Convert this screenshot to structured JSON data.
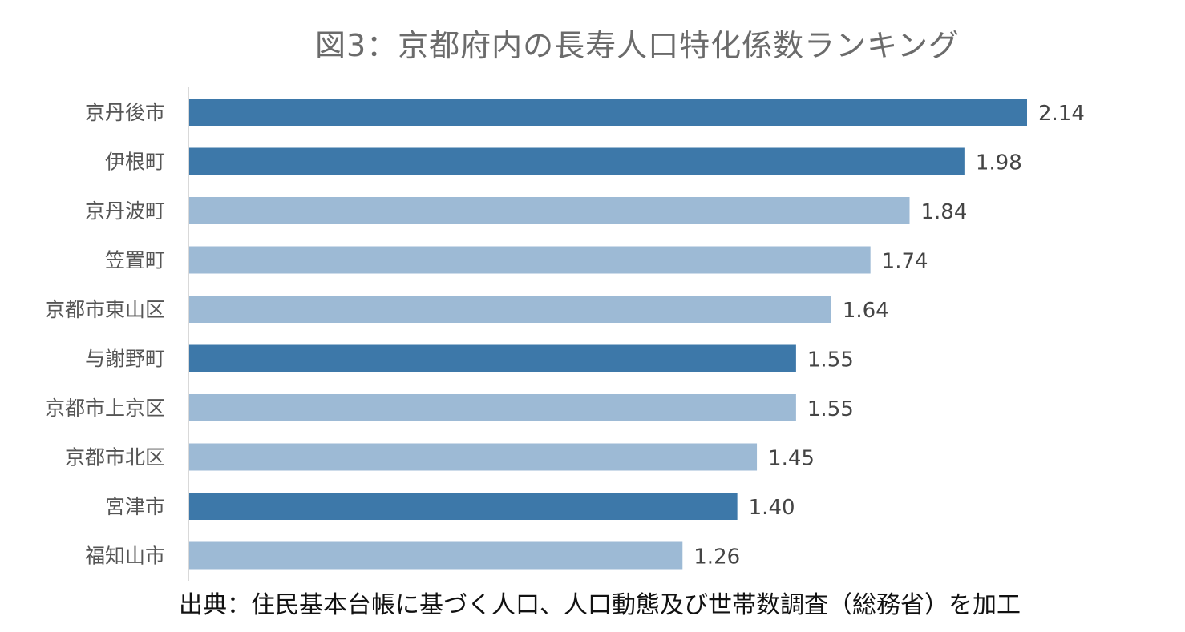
{
  "chart_data": {
    "type": "bar",
    "orientation": "horizontal",
    "title": "図3：京都府内の長寿人口特化係数ランキング",
    "source": "出典：住民基本台帳に基づく人口、人口動態及び世帯数調査（総務省）を加工",
    "categories": [
      "京丹後市",
      "伊根町",
      "京丹波町",
      "笠置町",
      "京都市東山区",
      "与謝野町",
      "京都市上京区",
      "京都市北区",
      "宮津市",
      "福知山市"
    ],
    "values": [
      2.14,
      1.98,
      1.84,
      1.74,
      1.64,
      1.55,
      1.55,
      1.45,
      1.4,
      1.26
    ],
    "value_labels": [
      "2.14",
      "1.98",
      "1.84",
      "1.74",
      "1.64",
      "1.55",
      "1.55",
      "1.45",
      "1.40",
      "1.26"
    ],
    "highlighted": [
      true,
      true,
      false,
      false,
      false,
      true,
      false,
      false,
      true,
      false
    ],
    "xlim": [
      0,
      2.14
    ],
    "grid": false,
    "legend": "none",
    "colors": {
      "highlight": "#3d78a9",
      "normal": "#9dbad5",
      "axis": "#d9d9d9"
    }
  }
}
